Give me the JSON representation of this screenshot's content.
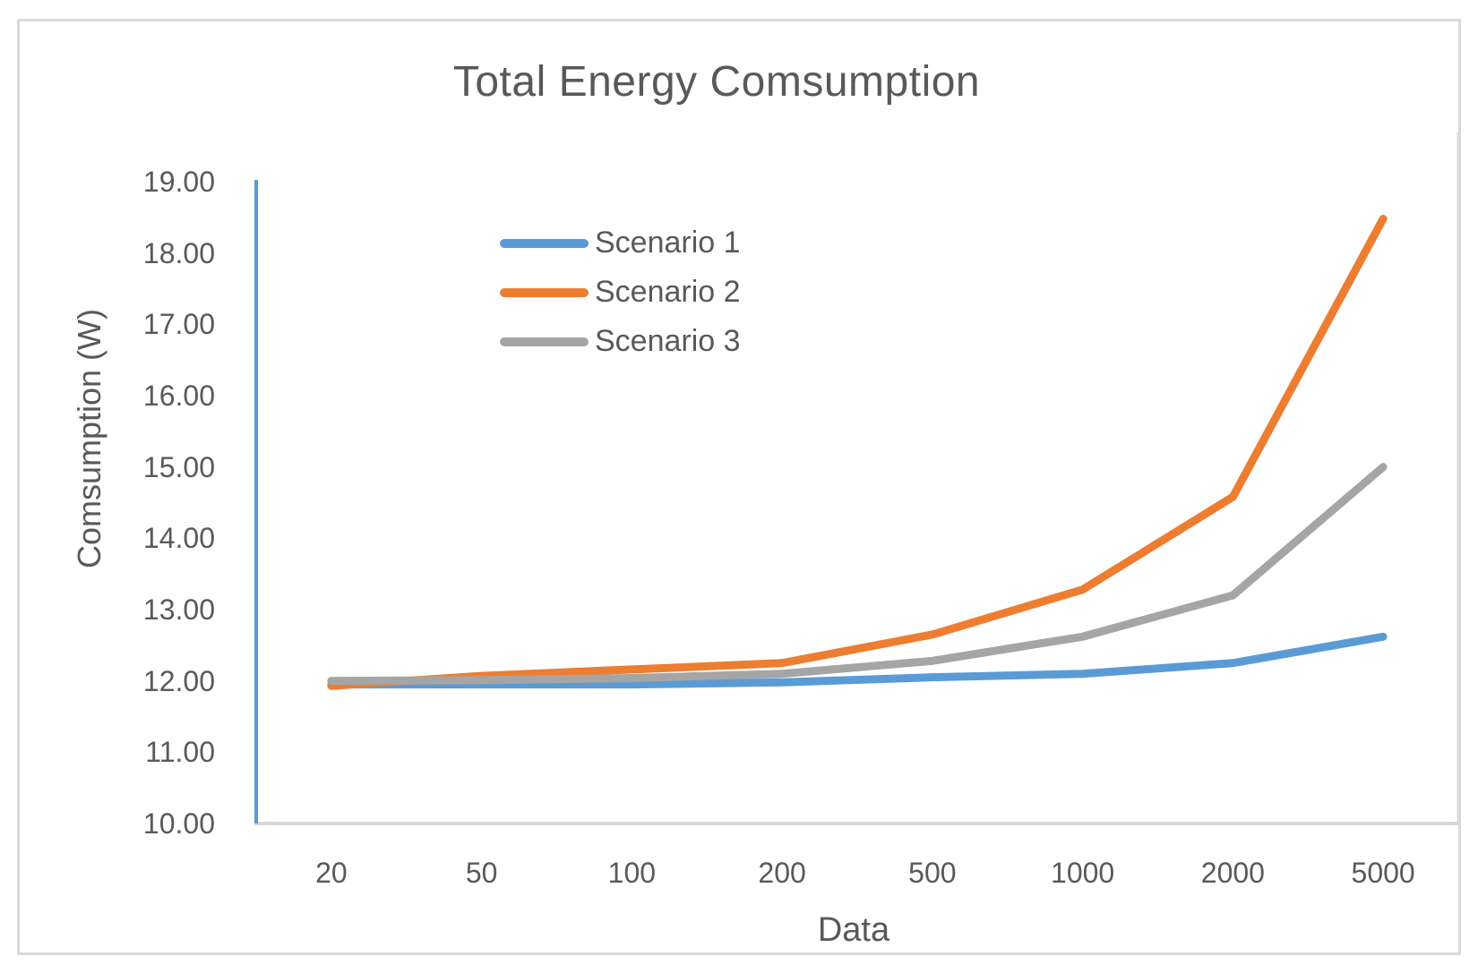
{
  "chart_data": {
    "type": "line",
    "title": "Total Energy Comsumption",
    "xlabel": "Data",
    "ylabel": "Comsumption (W)",
    "categories": [
      "20",
      "50",
      "100",
      "200",
      "500",
      "1000",
      "2000",
      "5000"
    ],
    "series": [
      {
        "name": "Scenario 1",
        "color": "#5B9BD5",
        "values": [
          11.95,
          11.95,
          11.95,
          11.98,
          12.05,
          12.1,
          12.25,
          12.62
        ]
      },
      {
        "name": "Scenario 2",
        "color": "#ED7D31",
        "values": [
          11.93,
          12.07,
          12.16,
          12.25,
          12.65,
          13.28,
          14.58,
          18.48
        ]
      },
      {
        "name": "Scenario 3",
        "color": "#A5A5A5",
        "values": [
          12.0,
          12.01,
          12.04,
          12.1,
          12.28,
          12.62,
          13.2,
          15.0
        ]
      }
    ],
    "y_ticks": [
      "19.00",
      "18.00",
      "17.00",
      "16.00",
      "15.00",
      "14.00",
      "13.00",
      "12.00",
      "11.00",
      "10.00"
    ],
    "ylim": [
      10,
      19
    ],
    "grid": false,
    "legend_position": "inside-top-left",
    "colors": {
      "y_axis_line": "#5B9BD5",
      "x_axis_line": "#D9D9D9",
      "plot_border": "#D9D9D9",
      "chart_border": "#D9D9D9",
      "text": "#595959"
    }
  }
}
